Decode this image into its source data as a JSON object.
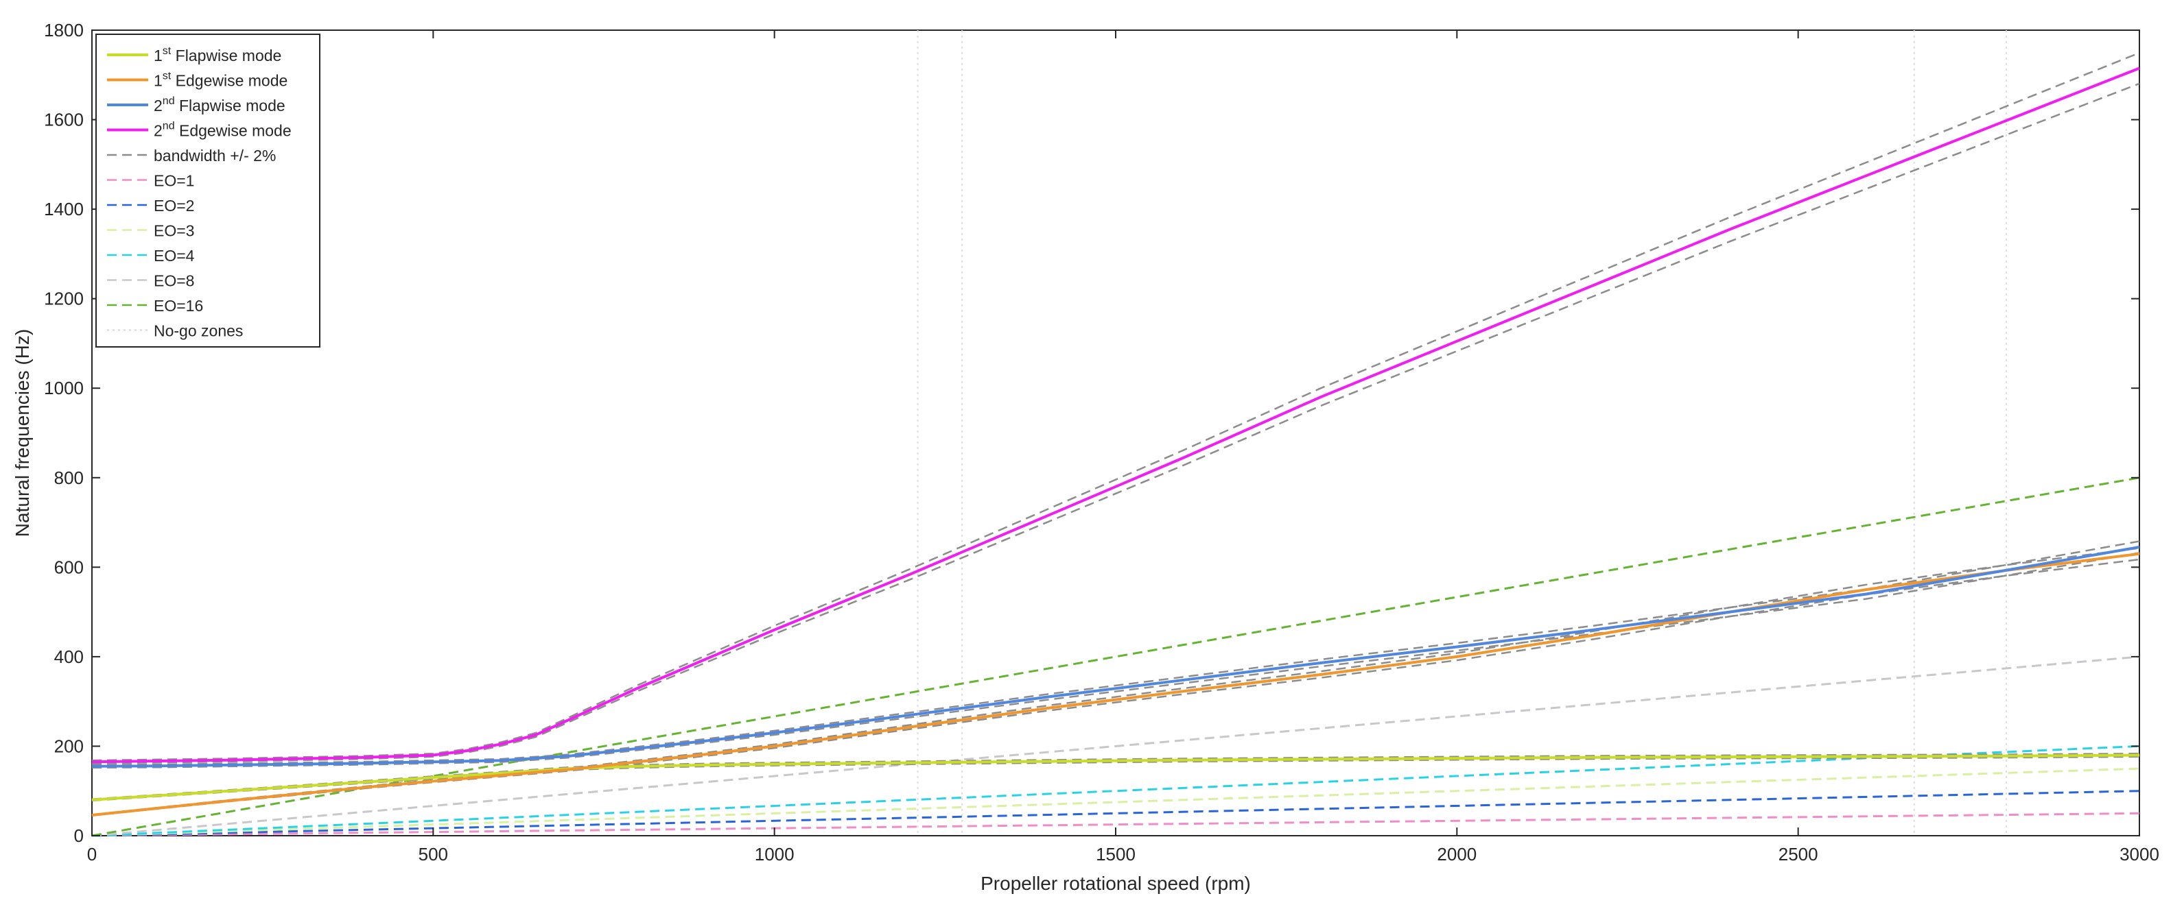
{
  "chart_data": {
    "type": "line",
    "xlabel": "Propeller rotational speed (rpm)",
    "ylabel": "Natural frequencies (Hz)",
    "xlim": [
      0,
      3000
    ],
    "ylim": [
      0,
      1800
    ],
    "xticks": [
      0,
      500,
      1000,
      1500,
      2000,
      2500,
      3000
    ],
    "yticks": [
      0,
      200,
      400,
      600,
      800,
      1000,
      1200,
      1400,
      1600,
      1800
    ],
    "xtick_labels": [
      "0",
      "500",
      "1000",
      "1500",
      "2000",
      "2500",
      "3000"
    ],
    "ytick_labels": [
      "0",
      "200",
      "400",
      "600",
      "800",
      "1000",
      "1200",
      "1400",
      "1600",
      "1800"
    ],
    "grid": false,
    "legend_position": "top-left",
    "nogo_zones_rpm": [
      1210,
      1275,
      2670,
      2805
    ],
    "bandwidth_pct": 2,
    "series": [
      {
        "key": "flap1",
        "label_main": "1",
        "label_sup": "st",
        "label_rest": " Flapwise mode",
        "color": "#c8dc28",
        "style": "solid",
        "x": [
          0,
          100,
          200,
          300,
          400,
          500,
          600,
          700,
          800,
          900,
          1000,
          1200,
          1400,
          1600,
          1800,
          2000,
          2200,
          2400,
          2600,
          2800,
          3000
        ],
        "y": [
          80,
          90,
          100,
          110,
          120,
          130,
          140,
          150,
          155,
          158,
          160,
          163,
          166,
          169,
          171,
          173,
          175,
          176,
          177,
          178,
          180
        ]
      },
      {
        "key": "edge1",
        "label_main": "1",
        "label_sup": "st",
        "label_rest": " Edgewise mode",
        "color": "#f0962d",
        "style": "solid",
        "x": [
          0,
          100,
          200,
          300,
          400,
          500,
          600,
          700,
          800,
          900,
          1000,
          1200,
          1400,
          1600,
          1800,
          2000,
          2200,
          2400,
          2600,
          2800,
          3000
        ],
        "y": [
          46,
          62,
          78,
          93,
          108,
          122,
          135,
          148,
          165,
          182,
          200,
          243,
          285,
          323,
          360,
          400,
          448,
          500,
          550,
          592,
          630
        ]
      },
      {
        "key": "flap2",
        "label_main": "2",
        "label_sup": "nd",
        "label_rest": " Flapwise mode",
        "color": "#4f86e0",
        "style": "solid",
        "x": [
          0,
          100,
          200,
          300,
          400,
          500,
          600,
          700,
          800,
          900,
          1000,
          1200,
          1400,
          1600,
          1800,
          2000,
          2200,
          2400,
          2600,
          2800,
          3000
        ],
        "y": [
          155,
          156,
          158,
          160,
          162,
          165,
          168,
          178,
          195,
          212,
          230,
          270,
          310,
          348,
          386,
          422,
          460,
          500,
          540,
          592,
          645
        ]
      },
      {
        "key": "edge2",
        "label_main": "2",
        "label_sup": "nd",
        "label_rest": " Edgewise mode",
        "color": "#f01ef0",
        "style": "solid",
        "x": [
          0,
          100,
          200,
          300,
          400,
          500,
          550,
          600,
          650,
          700,
          800,
          900,
          1000,
          1200,
          1400,
          1600,
          1800,
          2000,
          2200,
          2400,
          2600,
          2800,
          3000
        ],
        "y": [
          165,
          167,
          169,
          172,
          175,
          180,
          190,
          205,
          225,
          260,
          330,
          395,
          460,
          585,
          715,
          845,
          980,
          1105,
          1230,
          1355,
          1475,
          1595,
          1715
        ]
      },
      {
        "key": "bandwidth",
        "label": "bandwidth +/- 2%",
        "color": "#8c8c8c",
        "style": "dashed"
      },
      {
        "key": "eo1",
        "label": "EO=1",
        "color": "#f08cc8",
        "style": "dashed",
        "x": [
          0,
          3000
        ],
        "y": [
          0,
          50
        ]
      },
      {
        "key": "eo2",
        "label": "EO=2",
        "color": "#2864dc",
        "style": "dashed",
        "x": [
          0,
          3000
        ],
        "y": [
          0,
          100
        ]
      },
      {
        "key": "eo3",
        "label": "EO=3",
        "color": "#d8f0a0",
        "style": "dashed",
        "x": [
          0,
          3000
        ],
        "y": [
          0,
          150
        ]
      },
      {
        "key": "eo4",
        "label": "EO=4",
        "color": "#28d2e6",
        "style": "dashed",
        "x": [
          0,
          3000
        ],
        "y": [
          0,
          200
        ]
      },
      {
        "key": "eo8",
        "label": "EO=8",
        "color": "#c8c8cc",
        "style": "dashed",
        "x": [
          0,
          3000
        ],
        "y": [
          0,
          400
        ]
      },
      {
        "key": "eo16",
        "label": "EO=16",
        "color": "#64b432",
        "style": "dashed",
        "x": [
          0,
          3000
        ],
        "y": [
          0,
          800
        ]
      },
      {
        "key": "nogo",
        "label": "No-go zones",
        "color": "#dcdcdc",
        "style": "dotted"
      }
    ]
  }
}
